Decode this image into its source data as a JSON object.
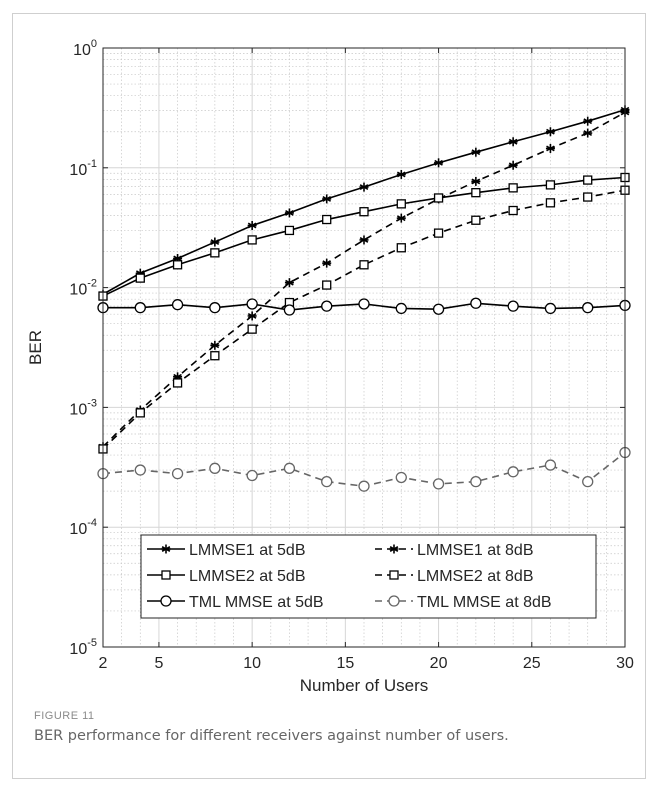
{
  "chart_data": {
    "type": "line",
    "xlabel": "Number of Users",
    "ylabel": "BER",
    "xlim": [
      2,
      30
    ],
    "ylim": [
      1e-05,
      1
    ],
    "yscale": "log",
    "xticks": [
      2,
      5,
      10,
      15,
      20,
      25,
      30
    ],
    "yticks": [
      {
        "exp": "-5",
        "value": 1e-05
      },
      {
        "exp": "-4",
        "value": 0.0001
      },
      {
        "exp": "-3",
        "value": 0.001
      },
      {
        "exp": "-2",
        "value": 0.01
      },
      {
        "exp": "-1",
        "value": 0.1
      },
      {
        "exp": "0",
        "value": 1
      }
    ],
    "tick_base": "10",
    "grid": true,
    "legend_position": "bottom-center",
    "x": [
      2,
      4,
      6,
      8,
      10,
      12,
      14,
      16,
      18,
      20,
      22,
      24,
      26,
      28,
      30
    ],
    "series": [
      {
        "name": "LMMSE1 at 5dB",
        "marker": "star",
        "dash": "solid",
        "color": "#000000",
        "values": [
          0.0088,
          0.0132,
          0.0175,
          0.024,
          0.033,
          0.042,
          0.055,
          0.069,
          0.088,
          0.11,
          0.135,
          0.165,
          0.2,
          0.245,
          0.305
        ]
      },
      {
        "name": "LMMSE1 at 8dB",
        "marker": "star",
        "dash": "dashed",
        "color": "#000000",
        "values": [
          0.00047,
          0.00095,
          0.0018,
          0.0033,
          0.0058,
          0.011,
          0.016,
          0.025,
          0.038,
          0.055,
          0.077,
          0.105,
          0.145,
          0.195,
          0.29
        ]
      },
      {
        "name": "LMMSE2 at 5dB",
        "marker": "square",
        "dash": "solid",
        "color": "#000000",
        "values": [
          0.0085,
          0.012,
          0.0155,
          0.0195,
          0.025,
          0.03,
          0.037,
          0.043,
          0.05,
          0.056,
          0.062,
          0.068,
          0.072,
          0.079,
          0.083
        ]
      },
      {
        "name": "LMMSE2 at 8dB",
        "marker": "square",
        "dash": "dashed",
        "color": "#000000",
        "values": [
          0.00045,
          0.0009,
          0.0016,
          0.0027,
          0.0045,
          0.0075,
          0.0105,
          0.0155,
          0.0215,
          0.0285,
          0.0365,
          0.044,
          0.051,
          0.057,
          0.065
        ]
      },
      {
        "name": "TML MMSE at 5dB",
        "marker": "circle",
        "dash": "solid",
        "color": "#000000",
        "values": [
          0.0068,
          0.0068,
          0.0072,
          0.0068,
          0.0073,
          0.0065,
          0.007,
          0.0073,
          0.0067,
          0.0066,
          0.0074,
          0.007,
          0.0067,
          0.0068,
          0.0071
        ]
      },
      {
        "name": "TML MMSE at 8dB",
        "marker": "circle",
        "dash": "dashed",
        "color": "#666666",
        "values": [
          0.00028,
          0.0003,
          0.00028,
          0.00031,
          0.00027,
          0.00031,
          0.00024,
          0.00022,
          0.00026,
          0.00023,
          0.00024,
          0.00029,
          0.00033,
          0.00024,
          0.00042
        ]
      }
    ]
  },
  "figure": {
    "label": "FIGURE 11",
    "caption": "BER performance for different receivers against number of users."
  }
}
